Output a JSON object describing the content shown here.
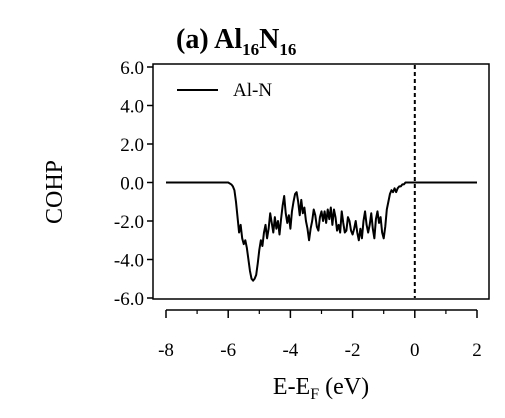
{
  "chart_data": {
    "type": "line",
    "title": {
      "prefix": "(a) ",
      "parts": [
        {
          "text": "Al",
          "sub": "16"
        },
        {
          "text": "N",
          "sub": "16"
        }
      ]
    },
    "xlabel": {
      "pre": "E-E",
      "sub": "F",
      "post": " (eV)"
    },
    "ylabel": "COHP",
    "xlim": [
      -8,
      2
    ],
    "ylim": [
      -6.0,
      6.0
    ],
    "xticks": [
      -8,
      -6,
      -4,
      -2,
      0,
      2
    ],
    "xtick_labels": [
      "-8",
      "-6",
      "-4",
      "-2",
      "0",
      "2"
    ],
    "yticks": [
      6.0,
      4.0,
      2.0,
      0.0,
      -2.0,
      -4.0,
      -6.0
    ],
    "ytick_labels": [
      "6.0",
      "4.0",
      "2.0",
      "0.0",
      "-2.0",
      "-4.0",
      "-6.0"
    ],
    "grid": false,
    "legend": {
      "position": "top-left",
      "entries": [
        "Al-N"
      ]
    },
    "vertical_dashed_line_at_x": 0,
    "series": [
      {
        "name": "Al-N",
        "color": "#000000",
        "x": [
          -8.0,
          -6.0,
          -5.9,
          -5.85,
          -5.8,
          -5.75,
          -5.7,
          -5.65,
          -5.6,
          -5.55,
          -5.5,
          -5.45,
          -5.4,
          -5.35,
          -5.3,
          -5.25,
          -5.2,
          -5.15,
          -5.1,
          -5.05,
          -5.0,
          -4.95,
          -4.9,
          -4.85,
          -4.8,
          -4.75,
          -4.7,
          -4.65,
          -4.6,
          -4.55,
          -4.5,
          -4.45,
          -4.4,
          -4.35,
          -4.3,
          -4.25,
          -4.2,
          -4.15,
          -4.1,
          -4.05,
          -4.0,
          -3.95,
          -3.9,
          -3.85,
          -3.8,
          -3.75,
          -3.7,
          -3.65,
          -3.6,
          -3.55,
          -3.5,
          -3.45,
          -3.4,
          -3.35,
          -3.3,
          -3.25,
          -3.2,
          -3.15,
          -3.1,
          -3.05,
          -3.0,
          -2.95,
          -2.9,
          -2.85,
          -2.8,
          -2.75,
          -2.7,
          -2.65,
          -2.6,
          -2.55,
          -2.5,
          -2.45,
          -2.4,
          -2.35,
          -2.3,
          -2.25,
          -2.2,
          -2.15,
          -2.1,
          -2.05,
          -2.0,
          -1.95,
          -1.9,
          -1.85,
          -1.8,
          -1.75,
          -1.7,
          -1.65,
          -1.6,
          -1.55,
          -1.5,
          -1.45,
          -1.4,
          -1.35,
          -1.3,
          -1.25,
          -1.2,
          -1.15,
          -1.1,
          -1.05,
          -1.0,
          -0.95,
          -0.9,
          -0.85,
          -0.8,
          -0.75,
          -0.7,
          -0.65,
          -0.6,
          -0.55,
          -0.5,
          -0.45,
          -0.4,
          -0.35,
          -0.3,
          -0.2,
          -0.1,
          0.0,
          2.0
        ],
        "y": [
          0.0,
          0.0,
          -0.1,
          -0.2,
          -0.4,
          -1.0,
          -1.8,
          -2.6,
          -2.2,
          -2.9,
          -3.2,
          -3.0,
          -3.4,
          -4.0,
          -4.6,
          -5.0,
          -5.1,
          -5.0,
          -4.8,
          -4.2,
          -3.5,
          -3.0,
          -3.3,
          -2.6,
          -2.2,
          -2.9,
          -2.4,
          -1.6,
          -2.1,
          -2.6,
          -1.8,
          -2.4,
          -2.0,
          -2.7,
          -1.9,
          -1.2,
          -0.7,
          -1.6,
          -2.1,
          -1.7,
          -2.4,
          -1.5,
          -1.0,
          -0.6,
          -0.5,
          -1.0,
          -1.7,
          -0.9,
          -1.6,
          -1.3,
          -2.0,
          -2.4,
          -3.0,
          -2.4,
          -2.0,
          -1.4,
          -1.7,
          -2.3,
          -2.5,
          -1.8,
          -1.5,
          -2.0,
          -1.5,
          -2.1,
          -1.4,
          -1.9,
          -1.3,
          -2.2,
          -1.4,
          -1.8,
          -2.5,
          -2.2,
          -2.6,
          -1.5,
          -2.1,
          -2.6,
          -2.5,
          -1.8,
          -2.0,
          -2.5,
          -2.7,
          -2.4,
          -2.0,
          -2.6,
          -3.0,
          -2.4,
          -2.9,
          -2.0,
          -1.5,
          -2.2,
          -2.6,
          -2.2,
          -1.6,
          -2.4,
          -2.9,
          -1.9,
          -1.5,
          -2.1,
          -1.8,
          -2.6,
          -2.9,
          -2.3,
          -1.4,
          -1.0,
          -0.6,
          -0.4,
          -0.5,
          -0.3,
          -0.5,
          -0.3,
          -0.2,
          -0.2,
          -0.1,
          -0.1,
          0.0,
          0.0,
          0.0,
          0.0,
          0.0
        ]
      }
    ]
  }
}
